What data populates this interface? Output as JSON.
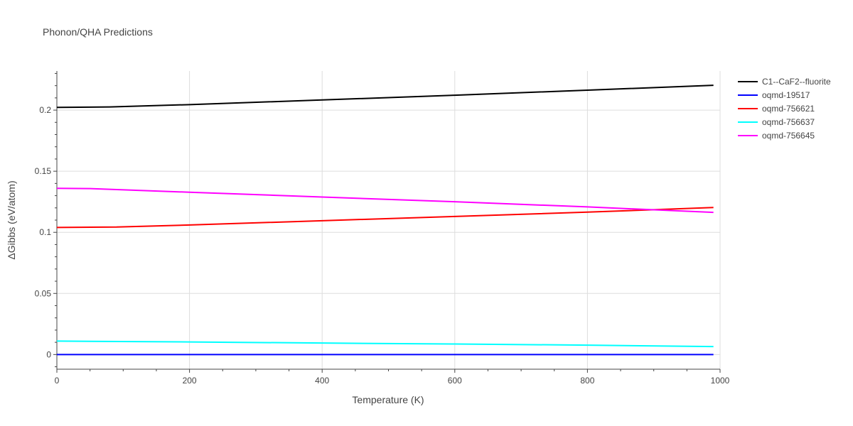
{
  "chart_data": {
    "type": "line",
    "title": "Phonon/QHA Predictions",
    "xlabel": "Temperature (K)",
    "ylabel": "ΔGibbs (eV/atom)",
    "xlim": [
      0,
      1000
    ],
    "ylim": [
      -0.012,
      0.232
    ],
    "xticks": [
      0,
      200,
      400,
      600,
      800,
      1000
    ],
    "xtick_labels": [
      "0",
      "200",
      "400",
      "600",
      "800",
      "1000"
    ],
    "yticks": [
      0,
      0.05,
      0.1,
      0.15,
      0.2
    ],
    "ytick_labels": [
      "0",
      "0.05",
      "0.1",
      "0.15",
      "0.2"
    ],
    "grid": true,
    "legend_position": "top-right-outside",
    "series": [
      {
        "name": "C1--CaF2--fluorite",
        "color": "#000000",
        "x": [
          0,
          80,
          200,
          400,
          600,
          800,
          990
        ],
        "y": [
          0.2022,
          0.2026,
          0.2045,
          0.2083,
          0.2122,
          0.2163,
          0.2203
        ]
      },
      {
        "name": "oqmd-19517",
        "color": "#0000ff",
        "x": [
          0,
          990
        ],
        "y": [
          0.0,
          0.0
        ]
      },
      {
        "name": "oqmd-756621",
        "color": "#ff0000",
        "x": [
          0,
          90,
          200,
          400,
          600,
          800,
          990
        ],
        "y": [
          0.104,
          0.1043,
          0.106,
          0.1095,
          0.113,
          0.1165,
          0.1203
        ]
      },
      {
        "name": "oqmd-756637",
        "color": "#00ffff",
        "x": [
          0,
          200,
          400,
          600,
          800,
          990
        ],
        "y": [
          0.011,
          0.0103,
          0.0094,
          0.0086,
          0.0077,
          0.0065
        ]
      },
      {
        "name": "oqmd-756645",
        "color": "#ff00ff",
        "x": [
          0,
          50,
          200,
          400,
          600,
          800,
          990
        ],
        "y": [
          0.136,
          0.1358,
          0.1328,
          0.1289,
          0.125,
          0.1208,
          0.1163
        ]
      }
    ]
  }
}
